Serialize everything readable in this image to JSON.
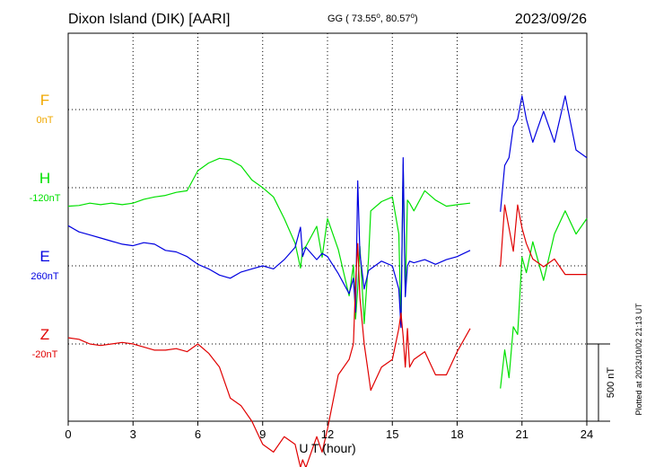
{
  "header": {
    "station": "Dixon Island (DIK)  [AARI]",
    "coords": "GG ( 73.55",
    "coords_lat_sup": "o",
    "coords_sep": ",  80.57",
    "coords_lon_sup": "o",
    "coords_end": ")",
    "date": "2023/09/26"
  },
  "footer": {
    "plotted": "Plotted at 2023/10/02 21:13 UT"
  },
  "colors": {
    "F": "#f0a800",
    "H": "#00e000",
    "E": "#0000e0",
    "Z": "#e00000",
    "grid": "#000000"
  },
  "chart_data": {
    "type": "line",
    "title": "Dixon Island (DIK)  [AARI]",
    "xlabel": "U T (hour)",
    "ylabel": "",
    "xlim": [
      0,
      24
    ],
    "xticks": [
      "0",
      "3",
      "6",
      "9",
      "12",
      "15",
      "18",
      "21",
      "24"
    ],
    "scale_bar": "500 nT",
    "grid": "dotted",
    "gaps": [
      [
        18.6,
        20.0
      ]
    ],
    "series": [
      {
        "name": "F",
        "baseline_label": "0nT",
        "color": "#f0a800",
        "x": [],
        "y": []
      },
      {
        "name": "H",
        "baseline_label": "-120nT",
        "color": "#00e000",
        "x": [
          0,
          0.5,
          1.0,
          1.5,
          2.0,
          2.5,
          3.0,
          3.5,
          4.0,
          4.5,
          5.0,
          5.5,
          6.0,
          6.5,
          7.0,
          7.5,
          8.0,
          8.5,
          9.0,
          9.5,
          10.0,
          10.5,
          10.75,
          10.85,
          11.0,
          11.5,
          11.75,
          12.0,
          12.5,
          13.0,
          13.2,
          13.3,
          13.4,
          13.5,
          13.7,
          13.9,
          14.0,
          14.5,
          15.0,
          15.3,
          15.4,
          15.5,
          15.6,
          15.7,
          15.8,
          16.0,
          16.5,
          17.0,
          17.5,
          18.0,
          18.6,
          20.0,
          20.2,
          20.4,
          20.6,
          20.8,
          21.0,
          21.2,
          21.5,
          22.0,
          22.5,
          23.0,
          23.5,
          24.0
        ],
        "y": [
          -120,
          -115,
          -100,
          -110,
          -100,
          -110,
          -100,
          -75,
          -60,
          -50,
          -30,
          -20,
          110,
          160,
          190,
          180,
          140,
          50,
          0,
          -60,
          -200,
          -360,
          -520,
          -400,
          -380,
          -250,
          -450,
          -200,
          -400,
          -700,
          -500,
          -850,
          -650,
          -380,
          -880,
          -450,
          -150,
          -90,
          -60,
          -300,
          -900,
          150,
          -700,
          -80,
          -100,
          -150,
          -20,
          -80,
          -120,
          -110,
          -100,
          -1300,
          -1050,
          -1230,
          -900,
          -950,
          -450,
          -550,
          -350,
          -600,
          -300,
          -150,
          -300,
          -200
        ]
      },
      {
        "name": "E",
        "baseline_label": "260nT",
        "color": "#0000e0",
        "x": [
          0,
          0.5,
          1.0,
          1.5,
          2.0,
          2.5,
          3.0,
          3.5,
          4.0,
          4.5,
          5.0,
          5.5,
          6.0,
          6.5,
          7.0,
          7.5,
          8.0,
          8.5,
          9.0,
          9.5,
          10.0,
          10.5,
          10.75,
          10.85,
          11.0,
          11.5,
          11.75,
          12.0,
          12.5,
          13.0,
          13.2,
          13.3,
          13.4,
          13.5,
          13.7,
          13.9,
          14.0,
          14.5,
          15.0,
          15.3,
          15.4,
          15.5,
          15.6,
          15.7,
          15.8,
          16.0,
          16.5,
          17.0,
          17.5,
          18.0,
          18.6,
          20.0,
          20.2,
          20.4,
          20.6,
          20.8,
          21.0,
          21.2,
          21.5,
          22.0,
          22.5,
          23.0,
          23.5,
          24.0
        ],
        "y": [
          260,
          220,
          200,
          180,
          160,
          140,
          130,
          150,
          140,
          100,
          90,
          60,
          10,
          -20,
          -60,
          -80,
          -40,
          -20,
          0,
          -20,
          40,
          120,
          250,
          60,
          120,
          40,
          80,
          60,
          -50,
          -180,
          -80,
          -300,
          550,
          80,
          -150,
          -30,
          -20,
          30,
          0,
          -150,
          -400,
          700,
          -200,
          0,
          30,
          20,
          40,
          10,
          40,
          60,
          100,
          350,
          650,
          700,
          900,
          950,
          1100,
          950,
          800,
          1000,
          800,
          1100,
          750,
          700
        ]
      },
      {
        "name": "Z",
        "baseline_label": "-20nT",
        "color": "#e00000",
        "x": [
          0,
          0.5,
          1.0,
          1.5,
          2.0,
          2.5,
          3.0,
          3.5,
          4.0,
          4.5,
          5.0,
          5.5,
          6.0,
          6.5,
          7.0,
          7.5,
          8.0,
          8.5,
          9.0,
          9.5,
          10.0,
          10.5,
          10.75,
          10.85,
          11.0,
          11.5,
          11.75,
          12.0,
          12.5,
          13.0,
          13.2,
          13.3,
          13.4,
          13.5,
          13.7,
          13.9,
          14.0,
          14.5,
          15.0,
          15.3,
          15.4,
          15.5,
          15.6,
          15.7,
          15.8,
          16.0,
          16.5,
          17.0,
          17.5,
          18.0,
          18.6,
          20.0,
          20.2,
          20.4,
          20.6,
          20.8,
          21.0,
          21.2,
          21.5,
          22.0,
          22.5,
          23.0,
          23.5,
          24.0
        ],
        "y": [
          40,
          30,
          0,
          -10,
          0,
          10,
          0,
          -20,
          -40,
          -40,
          -30,
          -50,
          0,
          -60,
          -150,
          -350,
          -400,
          -500,
          -650,
          -700,
          -600,
          -650,
          -800,
          -750,
          -800,
          -600,
          -700,
          -550,
          -200,
          -100,
          0,
          400,
          650,
          300,
          0,
          -200,
          -300,
          -150,
          -100,
          100,
          200,
          50,
          -150,
          100,
          -150,
          -100,
          -50,
          -200,
          -200,
          -50,
          100,
          500,
          900,
          750,
          600,
          900,
          750,
          650,
          550,
          500,
          550,
          450,
          450,
          450
        ]
      }
    ]
  }
}
